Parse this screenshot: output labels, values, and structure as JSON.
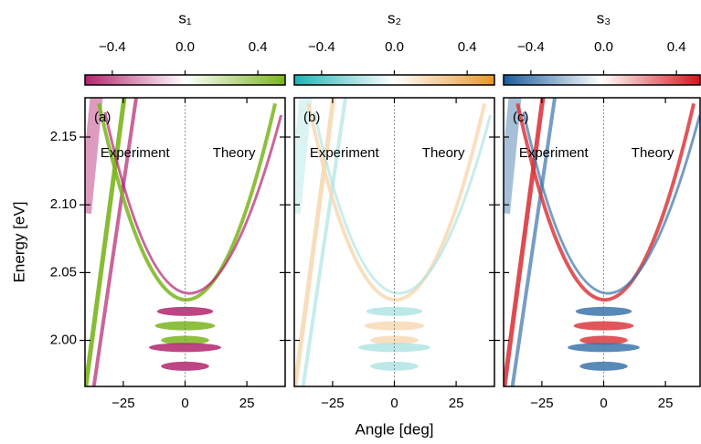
{
  "chart_data": [
    {
      "type": "heatmap",
      "title": "s₁",
      "colormap": [
        "#b3246e",
        "#ffffff",
        "#7ab51d"
      ],
      "clim": [
        -0.55,
        0.55
      ],
      "cticks": [
        {
          "value": -0.4,
          "label": "−0.4"
        },
        {
          "value": 0,
          "label": "0.0"
        },
        0.4
      ],
      "panel_label": "(a)",
      "annotations": [
        "Experiment",
        "Theory"
      ],
      "xlim": [
        -40.5,
        40.5
      ],
      "xticks": [
        {
          "value": -25,
          "label": "−25"
        },
        0,
        25
      ],
      "ylim": [
        1.966,
        2.179
      ],
      "yticks": [
        {
          "value": 2,
          "label": "2.00"
        },
        2.05,
        {
          "value": 2.1,
          "label": "2.10"
        },
        2.15
      ],
      "ylabel": "Energy [eV]"
    },
    {
      "type": "heatmap",
      "title": "s₂",
      "colormap": [
        "#1fb3b3",
        "#ffffff",
        "#e8952a"
      ],
      "clim": [
        -0.55,
        0.55
      ],
      "cticks": [
        {
          "value": -0.4,
          "label": "−0.4"
        },
        {
          "value": 0,
          "label": "0.0"
        },
        0.4
      ],
      "panel_label": "(b)",
      "annotations": [
        "Experiment",
        "Theory"
      ],
      "xlim": [
        -40.5,
        40.5
      ],
      "xticks": [
        {
          "value": -25,
          "label": "−25"
        },
        0,
        25
      ],
      "ylim": [
        1.966,
        2.179
      ],
      "yticks": [
        2,
        2.05,
        2.1,
        2.15
      ],
      "xlabel": "Angle [deg]"
    },
    {
      "type": "heatmap",
      "title": "s₃",
      "colormap": [
        "#1a5c9c",
        "#ffffff",
        "#d4151b"
      ],
      "clim": [
        -0.55,
        0.55
      ],
      "cticks": [
        {
          "value": -0.4,
          "label": "−0.4"
        },
        {
          "value": 0,
          "label": "0.0"
        },
        0.4
      ],
      "panel_label": "(c)",
      "annotations": [
        "Experiment",
        "Theory"
      ],
      "xlim": [
        -40.5,
        40.5
      ],
      "xticks": [
        {
          "value": -25,
          "label": "−25"
        },
        0,
        25
      ],
      "ylim": [
        1.966,
        2.179
      ],
      "yticks": [
        2,
        2.05,
        2.1,
        2.15
      ]
    }
  ]
}
